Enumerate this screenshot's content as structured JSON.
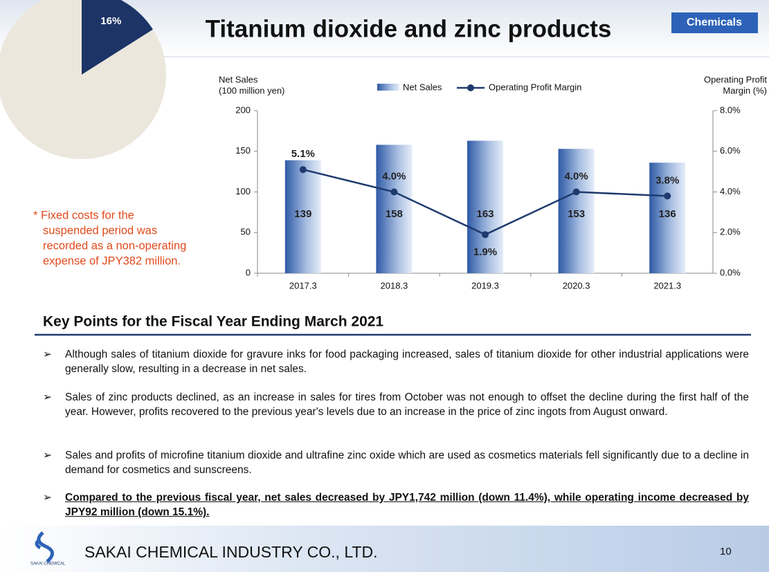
{
  "title": "Titanium dioxide and zinc products",
  "badge": "Chemicals",
  "chart_data": [
    {
      "type": "pie",
      "values": [
        16,
        84
      ],
      "value_labels": [
        "16%",
        null
      ],
      "colors": [
        "#1c3466",
        "#ebe7dc"
      ]
    },
    {
      "type": "bar",
      "categories": [
        "2017.3",
        "2018.3",
        "2019.3",
        "2020.3",
        "2021.3"
      ],
      "ylabel": [
        "Net Sales",
        "(100 million yen)"
      ],
      "y2label": [
        "Operating Profit",
        "Margin (%)"
      ],
      "series": [
        {
          "name": "Net Sales",
          "type": "bar",
          "color": "#3f6db5",
          "values": [
            139,
            158,
            163,
            153,
            136
          ]
        },
        {
          "name": "Operating Profit Margin",
          "type": "line",
          "axis": "y2",
          "color": "#1f3a6e",
          "values": [
            5.1,
            4.0,
            1.9,
            4.0,
            3.8
          ],
          "value_labels": [
            "5.1%",
            "4.0%",
            "1.9%",
            "4.0%",
            "3.8%"
          ]
        }
      ],
      "ylim": [
        0,
        200
      ],
      "yticks": [
        0,
        50,
        100,
        150,
        200
      ],
      "y2lim": [
        0,
        8
      ],
      "y2ticks": [
        {
          "value": 0,
          "label": "0.0%"
        },
        {
          "value": 2,
          "label": "2.0%"
        },
        {
          "value": 4,
          "label": "4.0%"
        },
        {
          "value": 6,
          "label": "6.0%"
        },
        {
          "value": 8,
          "label": "8.0%"
        }
      ],
      "grid": false,
      "legend": "top"
    }
  ],
  "note": [
    "* Fixed costs for the",
    "suspended period was",
    "recorded as a non-operating",
    "expense of JPY382 million."
  ],
  "section": {
    "heading": "Key Points for the Fiscal Year Ending March 2021",
    "bullets": [
      "Although sales of titanium dioxide for gravure inks for food packaging increased, sales of titanium dioxide for other industrial applications were generally slow, resulting in a decrease in net sales.",
      "Sales of zinc products declined, as an increase in sales for tires from October was not enough to offset the decline during the first half of the year. However, profits recovered to the previous year's levels due to an increase in the price of zinc ingots from August onward.",
      "Sales and profits of microfine titanium dioxide and ultrafine zinc oxide which are used as cosmetics materials fell significantly due to a decline in demand for cosmetics and sunscreens.",
      "Compared to the previous fiscal year, net sales decreased by JPY1,742 million (down 11.4%), while operating income decreased by JPY92 million (down 15.1%)."
    ]
  },
  "footer": {
    "logo": "SAKAI CHEMICAL",
    "company": "SAKAI CHEMICAL INDUSTRY CO., LTD.",
    "page": "10"
  }
}
